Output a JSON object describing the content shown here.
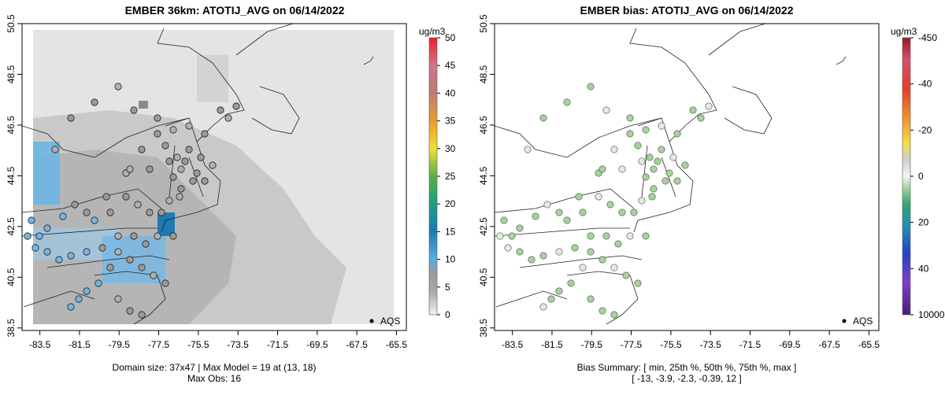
{
  "left_panel": {
    "title": "EMBER 36km: ATOTIJ_AVG on 06/14/2022",
    "footer_line1": "Domain size: 37x47 | Max Model = 19 at (13, 18)",
    "footer_line2": "Max Obs: 16",
    "legend_label": "AQS",
    "colorbar_unit": "ug/m3"
  },
  "right_panel": {
    "title": "EMBER bias: ATOTIJ_AVG on 06/14/2022",
    "footer_line1": "Bias Summary: [ min, 25th %, 50th %, 75th %, max ]",
    "footer_line2": "[ -13,  -3.9,  -2.3,  -0.39,  12 ]",
    "legend_label": "AQS",
    "colorbar_unit": "ug/m3"
  },
  "chart_data": [
    {
      "type": "map-heatmap",
      "title": "EMBER 36km: ATOTIJ_AVG on 06/14/2022",
      "x_ticks": [
        "-83.5",
        "-81.5",
        "-79.5",
        "-77.5",
        "-75.5",
        "-73.5",
        "-71.5",
        "-69.5",
        "-67.5",
        "-65.5"
      ],
      "y_ticks": [
        "38.5",
        "40.5",
        "42.5",
        "44.5",
        "46.5",
        "48.5",
        "50.5"
      ],
      "xlim": [
        -84.4,
        -65.0
      ],
      "ylim": [
        38.4,
        50.5
      ],
      "colorbar": {
        "label": "ug/m3",
        "min": 0,
        "max": 50,
        "ticks": [
          "0",
          "5",
          "10",
          "15",
          "20",
          "25",
          "30",
          "35",
          "40",
          "45",
          "50"
        ]
      },
      "summary": {
        "domain_size": "37x47",
        "max_model": 19,
        "max_model_at": "(13, 18)",
        "max_obs": 16
      },
      "legend": [
        "AQS"
      ]
    },
    {
      "type": "map-scatter",
      "title": "EMBER bias: ATOTIJ_AVG on 06/14/2022",
      "x_ticks": [
        "-83.5",
        "-81.5",
        "-79.5",
        "-77.5",
        "-75.5",
        "-73.5",
        "-71.5",
        "-69.5",
        "-67.5",
        "-65.5"
      ],
      "y_ticks": [
        "38.5",
        "40.5",
        "42.5",
        "44.5",
        "46.5",
        "48.5",
        "50.5"
      ],
      "xlim": [
        -84.4,
        -65.0
      ],
      "ylim": [
        38.4,
        50.5
      ],
      "colorbar": {
        "label": "ug/m3",
        "ticks": [
          "10000",
          "40",
          "20",
          "0",
          "-20",
          "-40",
          "-450"
        ]
      },
      "bias_summary": {
        "min": -13,
        "p25": -3.9,
        "p50": -2.3,
        "p75": -0.39,
        "max": 12
      },
      "legend": [
        "AQS"
      ]
    }
  ]
}
